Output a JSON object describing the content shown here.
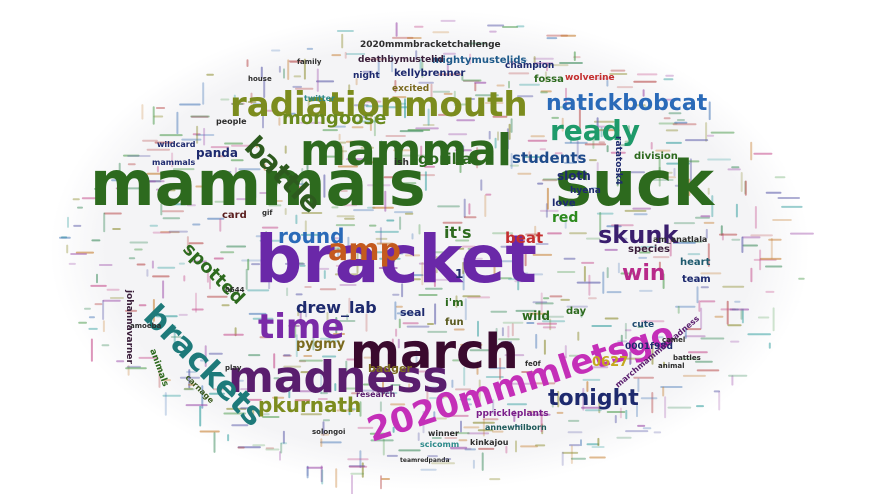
{
  "words": [
    {
      "text": "mammals",
      "color": "#2d6a1e",
      "size": 62
    },
    {
      "text": "suck",
      "color": "#2d6a1e",
      "size": 62
    },
    {
      "text": "bracket",
      "color": "#6a28a8",
      "size": 66
    },
    {
      "text": "mammal",
      "color": "#2d6a1e",
      "size": 44
    },
    {
      "text": "march",
      "color": "#3a0a2e",
      "size": 48
    },
    {
      "text": "madness",
      "color": "#5a1e6e",
      "size": 44
    },
    {
      "text": "2020mmmletsgo",
      "color": "#c42fb8",
      "size": 34
    },
    {
      "text": "radiationmouth",
      "color": "#7c8c1e",
      "size": 34
    },
    {
      "text": "brackets",
      "color": "#1e7a7a",
      "size": 32
    },
    {
      "text": "time",
      "color": "#7a2aa8",
      "size": 34
    },
    {
      "text": "amp",
      "color": "#c45a1e",
      "size": 30
    },
    {
      "text": "battle",
      "color": "#2d5a1e",
      "size": 28
    },
    {
      "text": "ready",
      "color": "#1e9a6a",
      "size": 28
    },
    {
      "text": "natickbobcat",
      "color": "#2a6ab8",
      "size": 22
    },
    {
      "text": "skunk",
      "color": "#3a1e6e",
      "size": 24
    },
    {
      "text": "tonight",
      "color": "#1e2a6e",
      "size": 22
    },
    {
      "text": "pkurnath",
      "color": "#7c8c1e",
      "size": 20
    },
    {
      "text": "win",
      "color": "#b82a8a",
      "size": 22
    },
    {
      "text": "round",
      "color": "#2a6ab8",
      "size": 20
    },
    {
      "text": "spotted",
      "color": "#2d6a1e",
      "size": 18
    },
    {
      "text": "mongoose",
      "color": "#6a8a1e",
      "size": 18
    },
    {
      "text": "drew_lab",
      "color": "#1e2a6e",
      "size": 16
    },
    {
      "text": "students",
      "color": "#1e4a8a",
      "size": 15
    },
    {
      "text": "gorilla",
      "color": "#2d6a1e",
      "size": 15
    },
    {
      "text": "it's",
      "color": "#2d6a1e",
      "size": 16
    },
    {
      "text": "beat",
      "color": "#c42f2f",
      "size": 15
    },
    {
      "text": "red",
      "color": "#2d8a1e",
      "size": 14
    },
    {
      "text": "pygmy",
      "color": "#7a6a1e",
      "size": 13
    },
    {
      "text": "sloth",
      "color": "#1e2a6e",
      "size": 12
    },
    {
      "text": "panda",
      "color": "#1e2a6e",
      "size": 12
    },
    {
      "text": "0627",
      "color": "#c4a81e",
      "size": 13
    },
    {
      "text": "wild",
      "color": "#2d6a1e",
      "size": 12
    },
    {
      "text": "seal",
      "color": "#1e2a6e",
      "size": 11
    },
    {
      "text": "badger",
      "color": "#7a6a1e",
      "size": 11
    },
    {
      "text": "i'm",
      "color": "#2d6a1e",
      "size": 11
    },
    {
      "text": "fun",
      "color": "#5a5a1e",
      "size": 10
    },
    {
      "text": "day",
      "color": "#2d6a1e",
      "size": 10
    },
    {
      "text": "love",
      "color": "#1e2a6e",
      "size": 10
    },
    {
      "text": "card",
      "color": "#5a1e1e",
      "size": 10
    },
    {
      "text": "team",
      "color": "#1e2a6e",
      "size": 10
    },
    {
      "text": "heart",
      "color": "#1e5a6e",
      "size": 10
    },
    {
      "text": "species",
      "color": "#3a1e3a",
      "size": 10
    },
    {
      "text": "cute",
      "color": "#1e4a6e",
      "size": 9
    },
    {
      "text": "0001f98d",
      "color": "#1e2a6e",
      "size": 9
    },
    {
      "text": "hyena",
      "color": "#1e2a6e",
      "size": 9
    },
    {
      "text": "division",
      "color": "#2d6a1e",
      "size": 10
    },
    {
      "text": "ratatosk4",
      "color": "#1e2a6e",
      "size": 9
    },
    {
      "text": "fossa",
      "color": "#2d6a1e",
      "size": 10
    },
    {
      "text": "wolverine",
      "color": "#c42f2f",
      "size": 9
    },
    {
      "text": "champion",
      "color": "#1e2a6e",
      "size": 9
    },
    {
      "text": "kellybrenner",
      "color": "#1e2a6e",
      "size": 10
    },
    {
      "text": "night",
      "color": "#1e2a6e",
      "size": 9
    },
    {
      "text": "mightymustelids",
      "color": "#1e5a8a",
      "size": 10
    },
    {
      "text": "2020mmmbracketchallenge",
      "color": "#2d2d2d",
      "size": 9
    },
    {
      "text": "deathbymustelid",
      "color": "#3a1e3a",
      "size": 9
    },
    {
      "text": "excited",
      "color": "#7a6a1e",
      "size": 9
    },
    {
      "text": "ish",
      "color": "#2d2d2d",
      "size": 9
    },
    {
      "text": "am_anatlala",
      "color": "#2d2d2d",
      "size": 8
    },
    {
      "text": "johannavarner",
      "color": "#3a1e3a",
      "size": 9
    },
    {
      "text": "pprickleplants",
      "color": "#7a1e8a",
      "size": 9
    },
    {
      "text": "marchmammalmadness",
      "color": "#5a1e6e",
      "size": 8
    },
    {
      "text": "annewhilborn",
      "color": "#1e5a5a",
      "size": 8
    },
    {
      "text": "winner",
      "color": "#2d2d2d",
      "size": 8
    },
    {
      "text": "kinkajou",
      "color": "#2d2d2d",
      "size": 8
    },
    {
      "text": "scicomm",
      "color": "#2d8a8a",
      "size": 8
    },
    {
      "text": "research",
      "color": "#5a1e6e",
      "size": 8
    },
    {
      "text": "solongoi",
      "color": "#2d2d2d",
      "size": 7
    },
    {
      "text": "animals",
      "color": "#2d6a1e",
      "size": 9
    },
    {
      "text": "carnage",
      "color": "#3a5a1e",
      "size": 8
    },
    {
      "text": "wildcard",
      "color": "#1e2a6e",
      "size": 8
    },
    {
      "text": "mammals",
      "color": "#1e2a6e",
      "size": 8
    },
    {
      "text": "people",
      "color": "#2d2d2d",
      "size": 8
    },
    {
      "text": "twitter",
      "color": "#2d8a8a",
      "size": 8
    },
    {
      "text": "animal",
      "color": "#2d2d2d",
      "size": 7
    },
    {
      "text": "camel",
      "color": "#2d2d2d",
      "size": 7
    },
    {
      "text": "battles",
      "color": "#2d2d2d",
      "size": 7
    },
    {
      "text": "amoeba",
      "color": "#2d2d2d",
      "size": 7
    },
    {
      "text": "play",
      "color": "#2d2d2d",
      "size": 7
    },
    {
      "text": "teamredpanda",
      "color": "#2d2d2d",
      "size": 6
    },
    {
      "text": "fe0f",
      "color": "#2d2d2d",
      "size": 7
    },
    {
      "text": "0644",
      "color": "#2d2d2d",
      "size": 7
    },
    {
      "text": "1",
      "color": "#1e2a6e",
      "size": 12
    },
    {
      "text": "house",
      "color": "#2d2d2d",
      "size": 7
    },
    {
      "text": "family",
      "color": "#2d2d2d",
      "size": 7
    },
    {
      "text": "gif",
      "color": "#2d2d2d",
      "size": 7
    }
  ]
}
